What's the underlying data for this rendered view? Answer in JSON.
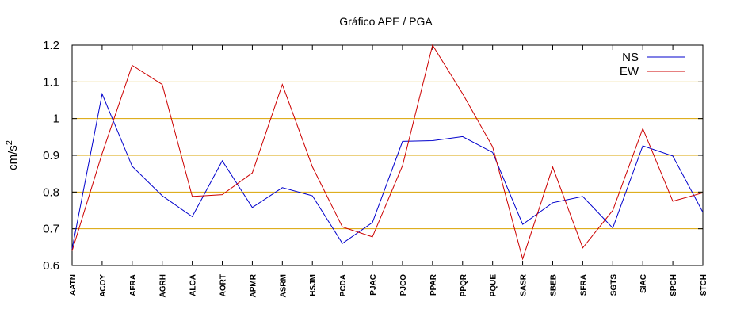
{
  "chart_data": {
    "type": "line",
    "title": "Gráfico  APE / PGA",
    "ylabel": "cm/s",
    "ylabel_sup": "2",
    "xlabel": "",
    "ylim": [
      0.6,
      1.2
    ],
    "yticks": [
      "0.6",
      "0.7",
      "0.8",
      "0.9",
      "1",
      "1.1",
      "1.2"
    ],
    "grid": true,
    "grid_color": "#d9a300",
    "legend_position": "top-right",
    "categories": [
      "AATN",
      "ACOY",
      "AFRA",
      "AGRH",
      "ALCA",
      "AORT",
      "APMR",
      "ASRM",
      "HSJM",
      "PCDA",
      "PJAC",
      "PJCO",
      "PPAR",
      "PPQR",
      "PQUE",
      "SASR",
      "SBEB",
      "SFRA",
      "SGTS",
      "SIAC",
      "SPCH",
      "STCH"
    ],
    "series": [
      {
        "name": "NS",
        "color": "#0000cc",
        "values": [
          0.645,
          1.067,
          0.87,
          0.79,
          0.733,
          0.885,
          0.758,
          0.812,
          0.79,
          0.66,
          0.717,
          0.938,
          0.94,
          0.951,
          0.908,
          0.712,
          0.771,
          0.788,
          0.702,
          0.926,
          0.898,
          0.745
        ]
      },
      {
        "name": "EW",
        "color": "#cc0000",
        "values": [
          0.64,
          0.905,
          1.145,
          1.093,
          0.788,
          0.793,
          0.852,
          1.093,
          0.869,
          0.705,
          0.678,
          0.872,
          1.2,
          1.068,
          0.923,
          0.618,
          0.868,
          0.648,
          0.75,
          0.973,
          0.775,
          0.798
        ]
      }
    ]
  }
}
